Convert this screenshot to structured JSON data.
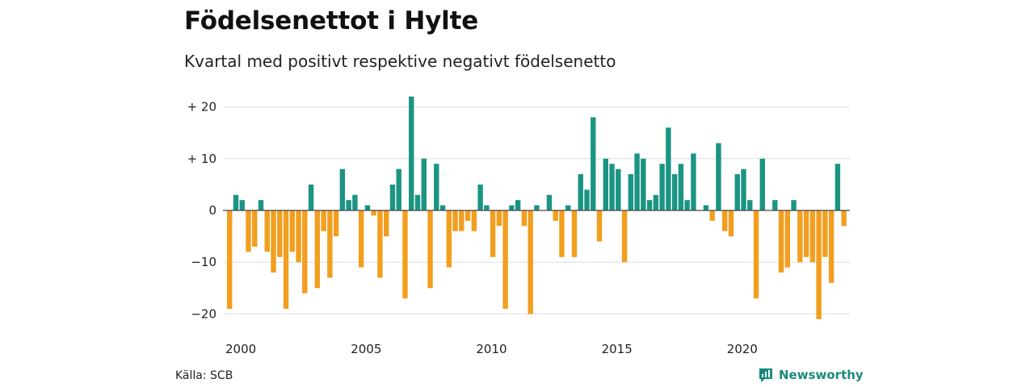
{
  "title": "Födelsenettot i Hylte",
  "subtitle": "Kvartal med positivt respektive negativt födelsenetto",
  "source": "Källa: SCB",
  "brand": "Newsworthy",
  "colors": {
    "positive": "#1b9483",
    "negative": "#f29e1f",
    "grid": "#dddddd",
    "zero": "#444444",
    "brand": "#1b8a7d"
  },
  "chart_data": {
    "type": "bar",
    "title": "Födelsenettot i Hylte",
    "subtitle": "Kvartal med positivt respektive negativt födelsenetto",
    "xlabel": "",
    "ylabel": "",
    "x_start": "2000 Q1",
    "x_ticks": [
      "2000",
      "2005",
      "2010",
      "2015",
      "2020"
    ],
    "y_ticks": [
      {
        "value": 20,
        "label": "+ 20"
      },
      {
        "value": 10,
        "label": "+ 10"
      },
      {
        "value": 0,
        "label": "0"
      },
      {
        "value": -10,
        "label": "−10"
      },
      {
        "value": -20,
        "label": "−20"
      }
    ],
    "ylim": [
      -21,
      22
    ],
    "grid": true,
    "values": [
      -19,
      3,
      2,
      -8,
      -7,
      2,
      -8,
      -12,
      -9,
      -19,
      -8,
      -10,
      -16,
      5,
      -15,
      -4,
      -13,
      -5,
      8,
      2,
      3,
      -11,
      1,
      -1,
      -13,
      -5,
      5,
      8,
      -17,
      22,
      3,
      10,
      -15,
      9,
      1,
      -11,
      -4,
      -4,
      -2,
      -4,
      5,
      1,
      -9,
      -3,
      -19,
      1,
      2,
      -3,
      -20,
      1,
      0,
      3,
      -2,
      -9,
      1,
      -9,
      7,
      4,
      18,
      -6,
      10,
      9,
      8,
      -10,
      7,
      11,
      10,
      2,
      3,
      9,
      16,
      7,
      9,
      2,
      11,
      0,
      1,
      -2,
      13,
      -4,
      -5,
      7,
      8,
      2,
      -17,
      10,
      0,
      2,
      -12,
      -11,
      2,
      -10,
      -9,
      -10,
      -21,
      -9,
      -14,
      9,
      -3
    ]
  }
}
